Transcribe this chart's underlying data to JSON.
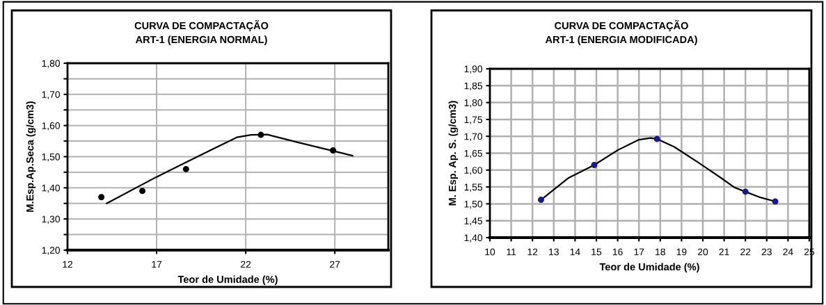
{
  "chart_data": [
    {
      "type": "line",
      "title": "CURVA DE COMPACTAÇÃO\nART-1 (ENERGIA NORMAL)",
      "xlabel": "Teor de Umidade (%)",
      "ylabel": "M.Esp.Ap.Seca (g/cm3)",
      "xlim": [
        12,
        30
      ],
      "xticks": [
        12,
        17,
        22,
        27
      ],
      "ylim": [
        1.2,
        1.8
      ],
      "yticks": [
        {
          "value": 1.2,
          "label": "1,20"
        },
        {
          "value": 1.25,
          "label": null
        },
        {
          "value": 1.3,
          "label": "1,30"
        },
        {
          "value": 1.35,
          "label": null
        },
        {
          "value": 1.4,
          "label": "1,40"
        },
        {
          "value": 1.45,
          "label": null
        },
        {
          "value": 1.5,
          "label": "1,50"
        },
        {
          "value": 1.55,
          "label": null
        },
        {
          "value": 1.6,
          "label": "1,60"
        },
        {
          "value": 1.65,
          "label": null
        },
        {
          "value": 1.7,
          "label": "1,70"
        },
        {
          "value": 1.75,
          "label": null
        },
        {
          "value": 1.8,
          "label": "1,80"
        }
      ],
      "grid": true,
      "series": [
        {
          "type": "scatter",
          "marker": "circle",
          "color": "#000000",
          "x": [
            13.9,
            16.2,
            18.65,
            22.85,
            26.9
          ],
          "values": [
            1.37,
            1.39,
            1.46,
            1.57,
            1.52
          ]
        },
        {
          "color": "#000000",
          "x": [
            14.2,
            17,
            20,
            21.5,
            22.3,
            23.2,
            25,
            28
          ],
          "values": [
            1.35,
            1.435,
            1.52,
            1.562,
            1.57,
            1.571,
            1.545,
            1.503
          ]
        }
      ]
    },
    {
      "type": "line",
      "title": "CURVA DE COMPACTAÇÃO\nART-1 (ENERGIA MODIFICADA)",
      "xlabel": "Teor de Umidade (%)",
      "ylabel": "M. Esp. Ap. S. (g/cm3)",
      "xlim": [
        10,
        25
      ],
      "xticks": [
        10,
        11,
        12,
        13,
        14,
        15,
        16,
        17,
        18,
        19,
        20,
        21,
        22,
        23,
        24,
        25
      ],
      "ylim": [
        1.4,
        1.9
      ],
      "yticks": [
        {
          "value": 1.4,
          "label": "1,40"
        },
        {
          "value": 1.45,
          "label": "1,45"
        },
        {
          "value": 1.5,
          "label": "1,50"
        },
        {
          "value": 1.55,
          "label": "1,55"
        },
        {
          "value": 1.6,
          "label": "1,60"
        },
        {
          "value": 1.65,
          "label": "1,65"
        },
        {
          "value": 1.7,
          "label": "1,70"
        },
        {
          "value": 1.75,
          "label": "1,75"
        },
        {
          "value": 1.8,
          "label": "1,80"
        },
        {
          "value": 1.85,
          "label": "1,85"
        },
        {
          "value": 1.9,
          "label": "1,90"
        }
      ],
      "grid": true,
      "series": [
        {
          "color": "#000000",
          "x": [
            12.4,
            13.7,
            14.9,
            16.0,
            17.0,
            17.55,
            17.85,
            18.65,
            19.75,
            20.85,
            21.5,
            22.0,
            22.7,
            23.4
          ],
          "values": [
            1.512,
            1.577,
            1.615,
            1.659,
            1.69,
            1.695,
            1.692,
            1.669,
            1.624,
            1.577,
            1.548,
            1.536,
            1.519,
            1.507
          ]
        },
        {
          "type": "scatter",
          "marker": "circle",
          "color": "#1a1a8c",
          "x": [
            12.4,
            14.9,
            17.85,
            22.0,
            23.4
          ],
          "values": [
            1.512,
            1.615,
            1.692,
            1.536,
            1.507
          ]
        }
      ]
    }
  ]
}
